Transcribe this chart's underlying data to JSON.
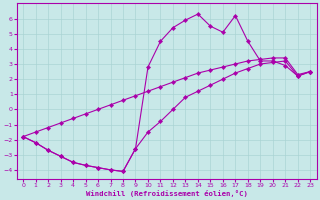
{
  "xlabel": "Windchill (Refroidissement éolien,°C)",
  "xlim": [
    -0.5,
    23.5
  ],
  "ylim": [
    -4.6,
    7.0
  ],
  "yticks": [
    -4,
    -3,
    -2,
    -1,
    0,
    1,
    2,
    3,
    4,
    5,
    6
  ],
  "xticks": [
    0,
    1,
    2,
    3,
    4,
    5,
    6,
    7,
    8,
    9,
    10,
    11,
    12,
    13,
    14,
    15,
    16,
    17,
    18,
    19,
    20,
    21,
    22,
    23
  ],
  "line_color": "#aa00aa",
  "bg_color": "#c8e8e8",
  "grid_color": "#aad4d4",
  "upper_x": [
    0,
    1,
    2,
    3,
    4,
    5,
    6,
    7,
    8,
    9,
    10,
    11,
    12,
    13,
    14,
    15,
    16,
    17,
    18,
    19,
    20,
    21,
    22,
    23
  ],
  "upper_y": [
    -1.8,
    -2.2,
    -2.7,
    -3.1,
    -3.5,
    -3.7,
    -3.85,
    -4.0,
    -4.1,
    -2.6,
    2.8,
    4.5,
    5.4,
    5.9,
    6.3,
    5.5,
    5.1,
    6.2,
    4.5,
    3.2,
    3.2,
    2.9,
    2.2,
    2.5
  ],
  "mid_x": [
    0,
    1,
    2,
    3,
    4,
    5,
    6,
    7,
    8,
    9,
    10,
    11,
    12,
    13,
    14,
    15,
    16,
    17,
    18,
    19,
    20,
    21,
    22,
    23
  ],
  "mid_y": [
    -1.8,
    -1.5,
    -1.2,
    -0.9,
    -0.6,
    -0.3,
    0.0,
    0.3,
    0.6,
    0.9,
    1.2,
    1.5,
    1.8,
    2.1,
    2.4,
    2.6,
    2.8,
    3.0,
    3.2,
    3.3,
    3.4,
    3.4,
    2.3,
    2.5
  ],
  "lower_x": [
    0,
    1,
    2,
    3,
    4,
    5,
    6,
    7,
    8,
    9,
    10,
    11,
    12,
    13,
    14,
    15,
    16,
    17,
    18,
    19,
    20,
    21,
    22,
    23
  ],
  "lower_y": [
    -1.8,
    -2.2,
    -2.7,
    -3.1,
    -3.5,
    -3.7,
    -3.85,
    -4.0,
    -4.1,
    -2.6,
    -1.5,
    -0.8,
    0.0,
    0.8,
    1.2,
    1.6,
    2.0,
    2.4,
    2.7,
    3.0,
    3.1,
    3.2,
    2.2,
    2.5
  ],
  "marker": "D",
  "marker_size": 2.2,
  "lw": 0.8
}
